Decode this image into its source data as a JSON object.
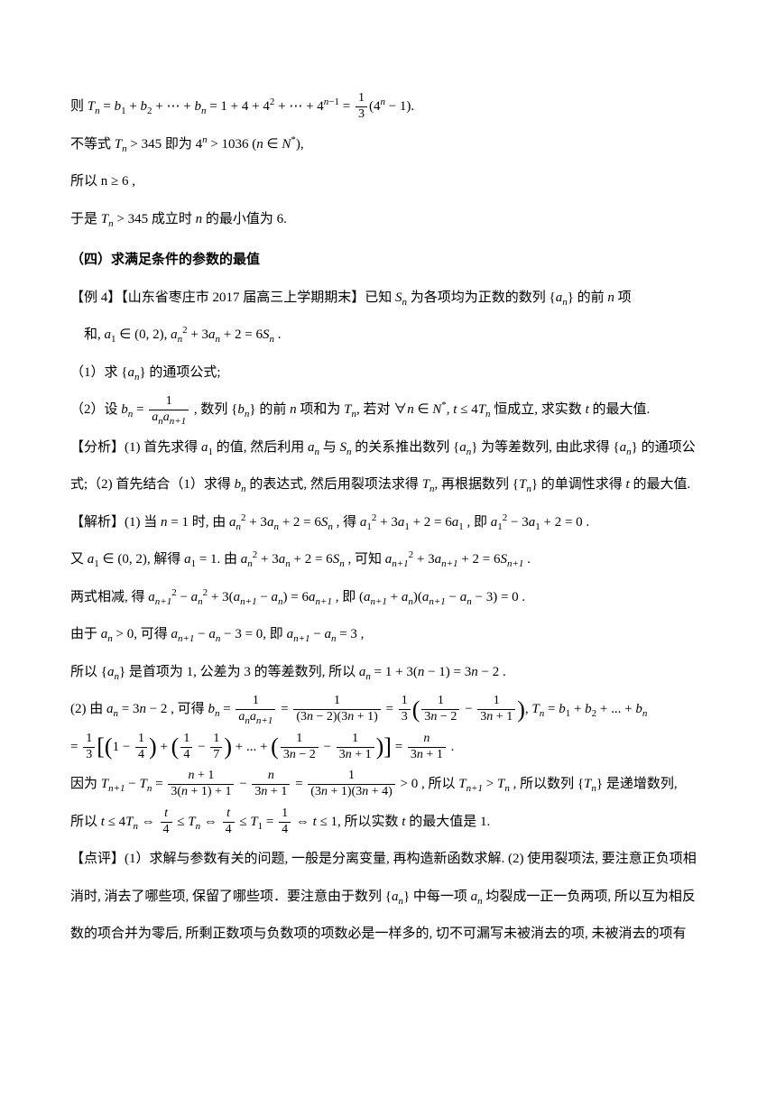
{
  "p1": "则 Tₙ = b₁ + b₂ + ⋯ + bₙ = 1 + 4 + 4² + ⋯ + 4ⁿ⁻¹ = ⅓(4ⁿ − 1).",
  "p2": "不等式 Tₙ > 345 即为 4ⁿ > 1036 (n ∈ N*),",
  "p3": "所以 n ≥ 6 ,",
  "p4": "于是 Tₙ > 345 成立时 n 的最小值为 6.",
  "heading": "（四）求满足条件的参数的最值",
  "ex4_title": "【例 4】【山东省枣庄市 2017 届高三上学期期末】已知 Sₙ 为各项均为正数的数列 {aₙ} 的前 n 项",
  "ex4_cond": "和, a₁ ∈ (0, 2), aₙ² + 3aₙ + 2 = 6Sₙ .",
  "q1": "（1）求 {aₙ} 的通项公式;",
  "q2": "（2）设 bₙ = 1/(aₙaₙ₊₁), 数列 {bₙ} 的前 n 项和为 Tₙ, 若对 ∀n ∈ N*, t ≤ 4Tₙ 恒成立, 求实数 t 的最大值.",
  "analysis": "【分析】(1) 首先求得 a₁ 的值, 然后利用 aₙ 与 Sₙ 的关系推出数列 {aₙ} 为等差数列, 由此求得 {aₙ} 的通项公",
  "analysis2": "式;（2) 首先结合（1）求得 bₙ 的表达式, 然后用裂项法求得 Tₙ, 再根据数列 {Tₙ} 的单调性求得 t 的最大值.",
  "sol1": "【解析】(1) 当 n = 1 时, 由 aₙ² + 3aₙ + 2 = 6Sₙ , 得 a₁² + 3a₁ + 2 = 6a₁ , 即 a₁² − 3a₁ + 2 = 0 .",
  "sol2": "又 a₁ ∈ (0, 2), 解得 a₁ = 1. 由 aₙ² + 3aₙ + 2 = 6Sₙ , 可知 aₙ₊₁² + 3aₙ₊₁ + 2 = 6Sₙ₊₁ .",
  "sol3": "两式相减, 得 aₙ₊₁² − aₙ² + 3(aₙ₊₁ − aₙ) = 6aₙ₊₁ , 即 (aₙ₊₁ + aₙ)(aₙ₊₁ − aₙ − 3) = 0 .",
  "sol4": "由于 aₙ > 0, 可得 aₙ₊₁ − aₙ − 3 = 0, 即 aₙ₊₁ − aₙ = 3 ,",
  "sol5": "所以 {aₙ} 是首项为 1, 公差为 3 的等差数列, 所以 aₙ = 1 + 3(n − 1) = 3n − 2 .",
  "sol6a": "(2) 由 aₙ = 3n − 2 , 可得 bₙ = ",
  "sol6b": ", Tₙ = b₁ + b₂ + ... + bₙ",
  "sol7a": "= ",
  "sol7b": " .",
  "sol8a": "因为 Tₙ₊₁ − Tₙ = ",
  "sol8b": " > 0 , 所以 Tₙ₊₁ > Tₙ , 所以数列 {Tₙ} 是递增数列,",
  "sol9": "所以 t ≤ 4Tₙ ⇔ t/4 ≤ Tₙ ⇔ t/4 ≤ T₁ = 1/4 ⇔ t ≤ 1, 所以实数 t 的最大值是 1.",
  "comment1": "【点评】(1）求解与参数有关的问题, 一般是分离变量, 再构造新函数求解. (2) 使用裂项法, 要注意正负项相",
  "comment2": "消时, 消去了哪些项, 保留了哪些项．要注意由于数列 {aₙ} 中每一项 aₙ 均裂成一正一负两项, 所以互为相反",
  "comment3": "数的项合并为零后, 所剩正数项与负数项的项数必是一样多的, 切不可漏写未被消去的项, 未被消去的项有"
}
